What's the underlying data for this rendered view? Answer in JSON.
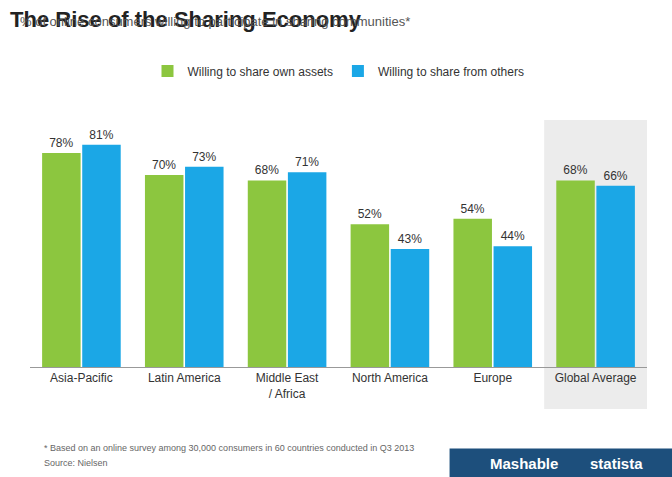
{
  "chart_data": {
    "type": "bar",
    "title": "The Rise of the Sharing Economy",
    "subtitle": "% of online consumers willing to participate in sharing communities*",
    "categories": [
      "Asia-Pacific",
      "Latin America",
      "Middle East / Africa",
      "North America",
      "Europe",
      "Global Average"
    ],
    "series": [
      {
        "name": "Willing to share own assets",
        "color": "#8cc63f",
        "values": [
          78,
          70,
          68,
          52,
          54,
          68
        ],
        "value_labels": [
          "78%",
          "70%",
          "68%",
          "52%",
          "54%",
          "68%"
        ]
      },
      {
        "name": "Willing to share from others",
        "color": "#1ba7e6",
        "values": [
          81,
          73,
          71,
          43,
          44,
          66
        ],
        "value_labels": [
          "81%",
          "73%",
          "71%",
          "43%",
          "44%",
          "66%"
        ]
      }
    ],
    "ylim": [
      0,
      90
    ],
    "grid": false,
    "legend": "top",
    "data_labels": true,
    "tick_labels": "x",
    "annotations": [
      "* Based on an online survey among 30,000 consumers in 60 countries conducted in Q3 2013",
      "Source: Nielsen"
    ],
    "credits": [
      "Mashable",
      "statista"
    ]
  }
}
